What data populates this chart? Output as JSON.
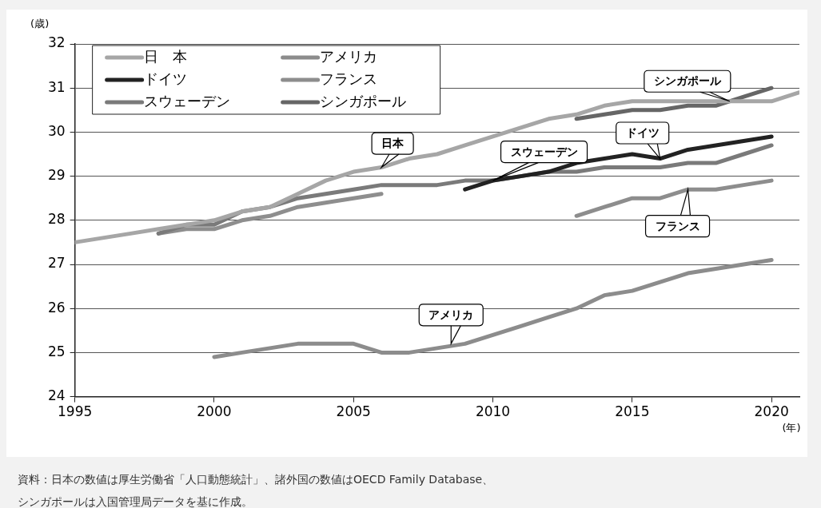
{
  "chart_data": {
    "type": "line",
    "ylabel": "(歳)",
    "xlabel": "(年)",
    "x": [
      1995,
      1996,
      1997,
      1998,
      1999,
      2000,
      2001,
      2002,
      2003,
      2004,
      2005,
      2006,
      2007,
      2008,
      2009,
      2010,
      2011,
      2012,
      2013,
      2014,
      2015,
      2016,
      2017,
      2018,
      2019,
      2020,
      2021
    ],
    "series": [
      {
        "name": "日　本",
        "color": "#a6a6a6",
        "values": [
          27.5,
          27.6,
          27.7,
          27.8,
          27.9,
          28.0,
          28.2,
          28.3,
          28.6,
          28.9,
          29.1,
          29.2,
          29.4,
          29.5,
          29.7,
          29.9,
          30.1,
          30.3,
          30.4,
          30.6,
          30.7,
          30.7,
          30.7,
          30.7,
          30.7,
          30.7,
          30.9
        ]
      },
      {
        "name": "アメリカ",
        "color": "#8c8c8c",
        "values": [
          null,
          null,
          null,
          null,
          null,
          24.9,
          25.0,
          25.1,
          25.2,
          25.2,
          25.2,
          25.0,
          25.0,
          25.1,
          25.2,
          25.4,
          25.6,
          25.8,
          26.0,
          26.3,
          26.4,
          26.6,
          26.8,
          26.9,
          27.0,
          27.1,
          null
        ]
      },
      {
        "name": "ドイツ",
        "color": "#222222",
        "values": [
          null,
          null,
          null,
          null,
          null,
          null,
          null,
          null,
          null,
          null,
          null,
          null,
          null,
          null,
          28.7,
          28.9,
          29.0,
          29.1,
          29.3,
          29.4,
          29.5,
          29.4,
          29.6,
          29.7,
          29.8,
          29.9,
          null
        ]
      },
      {
        "name": "フランス",
        "color": "#8d8d8d",
        "values": [
          null,
          null,
          null,
          null,
          null,
          null,
          null,
          null,
          null,
          null,
          null,
          null,
          null,
          null,
          null,
          null,
          null,
          null,
          28.1,
          28.3,
          28.5,
          28.5,
          28.7,
          28.7,
          28.8,
          28.9,
          null
        ]
      },
      {
        "name": "スウェーデン",
        "color": "#7a7a7a",
        "values": [
          null,
          null,
          null,
          27.7,
          27.9,
          27.9,
          28.2,
          28.3,
          28.5,
          28.6,
          28.7,
          28.8,
          28.8,
          28.8,
          28.9,
          28.9,
          29.0,
          29.1,
          29.1,
          29.2,
          29.2,
          29.2,
          29.3,
          29.3,
          29.5,
          29.7,
          null
        ]
      },
      {
        "name": "シンガポール",
        "color": "#666666",
        "values": [
          null,
          null,
          null,
          null,
          null,
          null,
          null,
          null,
          null,
          null,
          null,
          null,
          null,
          null,
          null,
          null,
          null,
          null,
          30.3,
          30.4,
          30.5,
          30.5,
          30.6,
          30.6,
          30.8,
          31.0,
          null
        ]
      },
      {
        "color": "#8e8e8e",
        "values": [
          null,
          null,
          null,
          27.7,
          27.8,
          27.8,
          28.0,
          28.1,
          28.3,
          28.4,
          28.5,
          28.6,
          null,
          null,
          null,
          null,
          null,
          null,
          null,
          null,
          null,
          null,
          null,
          null,
          null,
          null,
          null
        ]
      }
    ],
    "xlim": [
      1995,
      2021
    ],
    "xticks": [
      1995,
      2000,
      2005,
      2010,
      2015,
      2020
    ],
    "ylim": [
      24,
      32
    ],
    "yticks": [
      24,
      25,
      26,
      27,
      28,
      29,
      30,
      31,
      32
    ],
    "grid": "y",
    "legend": "top left",
    "marker": "none",
    "line_style": "solid",
    "annotations": [
      {
        "text": "日本",
        "x": 2006,
        "y": 29.2
      },
      {
        "text": "スウェーデン",
        "x": 2010,
        "y": 28.9
      },
      {
        "text": "ドイツ",
        "x": 2016,
        "y": 29.4
      },
      {
        "text": "シンガポール",
        "x": 2018.5,
        "y": 30.7
      },
      {
        "text": "フランス",
        "x": 2017,
        "y": 28.7
      },
      {
        "text": "アメリカ",
        "x": 2008.5,
        "y": 25.2
      },
      "資料：日本の数値は厚生労働省「人口動態統計」、諸外国の数値はOECD Family Database、",
      "シンガポールは入国管理局データを基に作成。"
    ]
  }
}
